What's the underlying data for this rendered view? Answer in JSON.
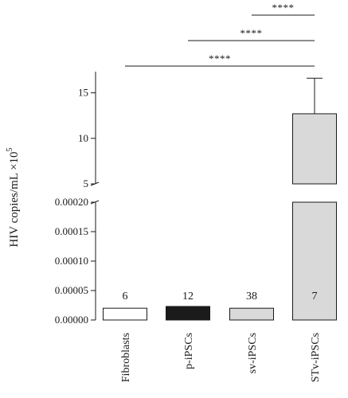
{
  "chart_data": {
    "type": "bar",
    "ylabel": "HIV copies/mL ×10",
    "ylabel_exponent": "5",
    "axis_break": true,
    "lower_segment": {
      "ylim": [
        0,
        0.0002
      ],
      "ticks": [
        "0.00000",
        "0.00005",
        "0.00010",
        "0.00015",
        "0.00020"
      ],
      "tick_values": [
        0,
        5e-05,
        0.0001,
        0.00015,
        0.0002
      ]
    },
    "upper_segment": {
      "ylim": [
        5,
        17.5
      ],
      "ticks": [
        "5",
        "10",
        "15"
      ],
      "tick_values": [
        5,
        10,
        15
      ]
    },
    "categories": [
      "Fibroblasts",
      "p-iPSCs",
      "sv-iPSCs",
      "STv-iPSCs"
    ],
    "values": [
      2e-05,
      2.3e-05,
      2e-05,
      12.7
    ],
    "error_upper": [
      null,
      null,
      null,
      16.6
    ],
    "bar_colors": [
      "#ffffff",
      "#1a1a1a",
      "#d9d9d9",
      "#d9d9d9"
    ],
    "bar_labels": [
      "6",
      "12",
      "38",
      "7"
    ],
    "bar_label_colors": [
      "#1a1a1a",
      "#1a1a1a",
      "#1a1a1a",
      "#1a1a1a"
    ],
    "significance": [
      {
        "from": 2,
        "to": 3,
        "label": "****"
      },
      {
        "from": 1,
        "to": 3,
        "label": "****"
      },
      {
        "from": 0,
        "to": 3,
        "label": "****"
      }
    ]
  }
}
